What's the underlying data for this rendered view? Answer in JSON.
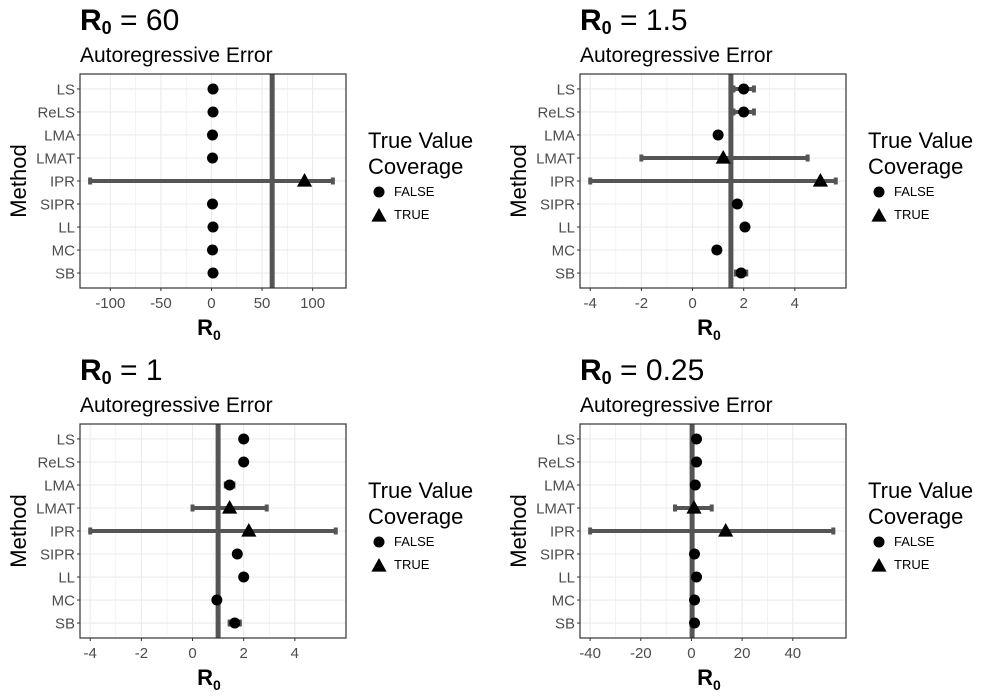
{
  "legend": {
    "title": "True Value\nCoverage",
    "items": [
      {
        "label": "FALSE",
        "shape": "circle"
      },
      {
        "label": "TRUE",
        "shape": "triangle"
      }
    ]
  },
  "colors": {
    "point": "#000000",
    "bar": "#555555",
    "grid": "#ebebeb",
    "border": "#333333",
    "text": "#4d4d4d"
  },
  "chart_data": [
    {
      "type": "scatter",
      "title_symbol": "R",
      "title_sub": "0",
      "title_value": "60",
      "subtitle": "Autoregressive Error",
      "ylabel": "Method",
      "xlabel_symbol": "R",
      "xlabel_sub": "0",
      "categories": [
        "LS",
        "ReLS",
        "LMA",
        "LMAT",
        "IPR",
        "SIPR",
        "LL",
        "MC",
        "SB"
      ],
      "xlim": [
        -130,
        133
      ],
      "xticks": [
        -100,
        -50,
        0,
        50,
        100
      ],
      "xtick_labels": [
        "-100",
        "-50",
        "0",
        "50",
        "100"
      ],
      "true_value": 60,
      "points": [
        {
          "method": "LS",
          "x": 1.5,
          "lo": 1,
          "hi": 2,
          "coverage": "FALSE"
        },
        {
          "method": "ReLS",
          "x": 1.5,
          "lo": 1,
          "hi": 2,
          "coverage": "FALSE"
        },
        {
          "method": "LMA",
          "x": 1,
          "lo": 1,
          "hi": 1,
          "coverage": "FALSE"
        },
        {
          "method": "LMAT",
          "x": 1,
          "lo": 1,
          "hi": 1,
          "coverage": "FALSE"
        },
        {
          "method": "IPR",
          "x": 92,
          "lo": -120,
          "hi": 120,
          "coverage": "TRUE"
        },
        {
          "method": "SIPR",
          "x": 1,
          "lo": 1,
          "hi": 1,
          "coverage": "FALSE"
        },
        {
          "method": "LL",
          "x": 1.5,
          "lo": 1,
          "hi": 2,
          "coverage": "FALSE"
        },
        {
          "method": "MC",
          "x": 1,
          "lo": 1,
          "hi": 1,
          "coverage": "FALSE"
        },
        {
          "method": "SB",
          "x": 1.5,
          "lo": 1,
          "hi": 2,
          "coverage": "FALSE"
        }
      ]
    },
    {
      "type": "scatter",
      "title_symbol": "R",
      "title_sub": "0",
      "title_value": "1.5",
      "subtitle": "Autoregressive Error",
      "ylabel": "Method",
      "xlabel_symbol": "R",
      "xlabel_sub": "0",
      "categories": [
        "LS",
        "ReLS",
        "LMA",
        "LMAT",
        "IPR",
        "SIPR",
        "LL",
        "MC",
        "SB"
      ],
      "xlim": [
        -4.4,
        6.0
      ],
      "xticks": [
        -4,
        -2,
        0,
        2,
        4
      ],
      "xtick_labels": [
        "-4",
        "-2",
        "0",
        "2",
        "4"
      ],
      "true_value": 1.5,
      "points": [
        {
          "method": "LS",
          "x": 2.0,
          "lo": 1.6,
          "hi": 2.4,
          "coverage": "FALSE"
        },
        {
          "method": "ReLS",
          "x": 2.0,
          "lo": 1.6,
          "hi": 2.4,
          "coverage": "FALSE"
        },
        {
          "method": "LMA",
          "x": 1.0,
          "lo": 0.9,
          "hi": 1.1,
          "coverage": "FALSE"
        },
        {
          "method": "LMAT",
          "x": 1.2,
          "lo": -2.0,
          "hi": 4.5,
          "coverage": "TRUE"
        },
        {
          "method": "IPR",
          "x": 5.0,
          "lo": -4.0,
          "hi": 5.6,
          "coverage": "TRUE"
        },
        {
          "method": "SIPR",
          "x": 1.75,
          "lo": 1.65,
          "hi": 1.85,
          "coverage": "FALSE"
        },
        {
          "method": "LL",
          "x": 2.05,
          "lo": 1.95,
          "hi": 2.15,
          "coverage": "FALSE"
        },
        {
          "method": "MC",
          "x": 0.95,
          "lo": 0.85,
          "hi": 1.05,
          "coverage": "FALSE"
        },
        {
          "method": "SB",
          "x": 1.9,
          "lo": 1.7,
          "hi": 2.1,
          "coverage": "FALSE"
        }
      ]
    },
    {
      "type": "scatter",
      "title_symbol": "R",
      "title_sub": "0",
      "title_value": "1",
      "subtitle": "Autoregressive Error",
      "ylabel": "Method",
      "xlabel_symbol": "R",
      "xlabel_sub": "0",
      "categories": [
        "LS",
        "ReLS",
        "LMA",
        "LMAT",
        "IPR",
        "SIPR",
        "LL",
        "MC",
        "SB"
      ],
      "xlim": [
        -4.4,
        6.0
      ],
      "xticks": [
        -4,
        -2,
        0,
        2,
        4
      ],
      "xtick_labels": [
        "-4",
        "-2",
        "0",
        "2",
        "4"
      ],
      "true_value": 1,
      "points": [
        {
          "method": "LS",
          "x": 2.0,
          "lo": 1.95,
          "hi": 2.05,
          "coverage": "FALSE"
        },
        {
          "method": "ReLS",
          "x": 2.0,
          "lo": 1.95,
          "hi": 2.05,
          "coverage": "FALSE"
        },
        {
          "method": "LMA",
          "x": 1.45,
          "lo": 1.3,
          "hi": 1.6,
          "coverage": "FALSE"
        },
        {
          "method": "LMAT",
          "x": 1.45,
          "lo": 0.0,
          "hi": 2.9,
          "coverage": "TRUE"
        },
        {
          "method": "IPR",
          "x": 2.2,
          "lo": -4.0,
          "hi": 5.6,
          "coverage": "TRUE"
        },
        {
          "method": "SIPR",
          "x": 1.75,
          "lo": 1.65,
          "hi": 1.85,
          "coverage": "FALSE"
        },
        {
          "method": "LL",
          "x": 2.0,
          "lo": 1.95,
          "hi": 2.05,
          "coverage": "FALSE"
        },
        {
          "method": "MC",
          "x": 0.95,
          "lo": 0.9,
          "hi": 1.0,
          "coverage": "FALSE"
        },
        {
          "method": "SB",
          "x": 1.65,
          "lo": 1.45,
          "hi": 1.85,
          "coverage": "FALSE"
        }
      ]
    },
    {
      "type": "scatter",
      "title_symbol": "R",
      "title_sub": "0",
      "title_value": "0.25",
      "subtitle": "Autoregressive Error",
      "ylabel": "Method",
      "xlabel_symbol": "R",
      "xlabel_sub": "0",
      "categories": [
        "LS",
        "ReLS",
        "LMA",
        "LMAT",
        "IPR",
        "SIPR",
        "LL",
        "MC",
        "SB"
      ],
      "xlim": [
        -44,
        61
      ],
      "xticks": [
        -40,
        -20,
        0,
        20,
        40
      ],
      "xtick_labels": [
        "-40",
        "-20",
        "0",
        "20",
        "40"
      ],
      "true_value": 0.25,
      "points": [
        {
          "method": "LS",
          "x": 2.0,
          "lo": 1.5,
          "hi": 2.5,
          "coverage": "FALSE"
        },
        {
          "method": "ReLS",
          "x": 2.0,
          "lo": 1.5,
          "hi": 2.5,
          "coverage": "FALSE"
        },
        {
          "method": "LMA",
          "x": 1.5,
          "lo": 1.2,
          "hi": 1.8,
          "coverage": "FALSE"
        },
        {
          "method": "LMAT",
          "x": 1.0,
          "lo": -6.5,
          "hi": 8.0,
          "coverage": "TRUE"
        },
        {
          "method": "IPR",
          "x": 13.5,
          "lo": -40.0,
          "hi": 56.0,
          "coverage": "TRUE"
        },
        {
          "method": "SIPR",
          "x": 1.2,
          "lo": 1.0,
          "hi": 1.4,
          "coverage": "FALSE"
        },
        {
          "method": "LL",
          "x": 2.0,
          "lo": 1.6,
          "hi": 2.4,
          "coverage": "FALSE"
        },
        {
          "method": "MC",
          "x": 1.2,
          "lo": 1.0,
          "hi": 1.4,
          "coverage": "FALSE"
        },
        {
          "method": "SB",
          "x": 1.2,
          "lo": 1.0,
          "hi": 1.4,
          "coverage": "FALSE"
        }
      ]
    }
  ]
}
